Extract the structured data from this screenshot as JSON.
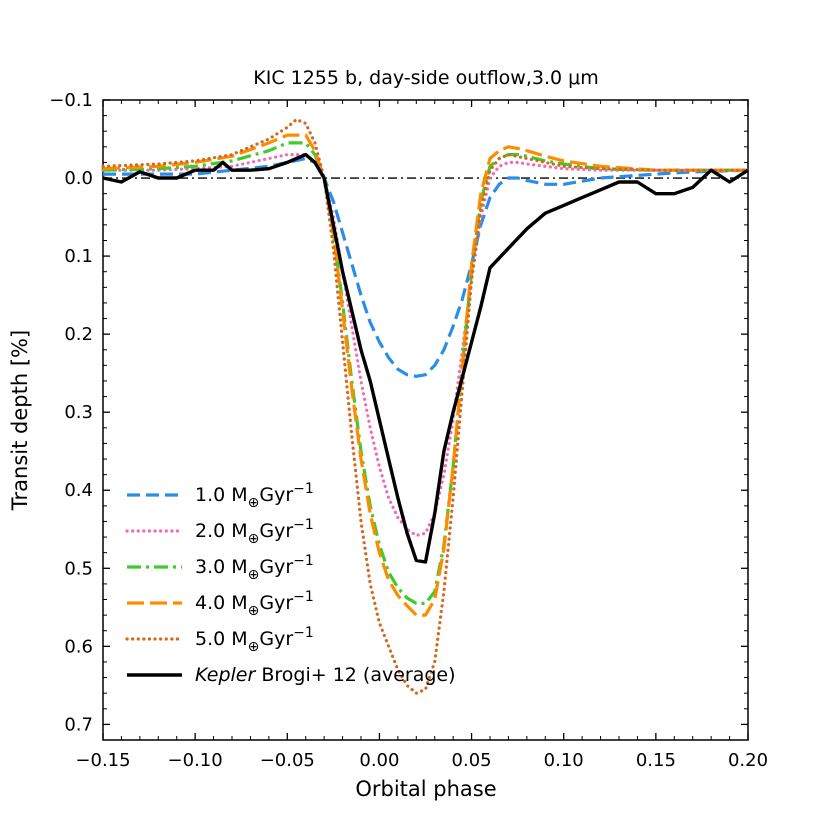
{
  "chart_data": {
    "type": "line",
    "title": "KIC 1255 b, day-side outflow,3.0 μm",
    "xlabel": "Orbital phase",
    "ylabel": "Transit depth [%]",
    "xlim": [
      -0.15,
      0.2
    ],
    "ylim": [
      0.72,
      -0.1
    ],
    "y_inverted": true,
    "xticks": [
      -0.15,
      -0.1,
      -0.05,
      0.0,
      0.05,
      0.1,
      0.15,
      0.2
    ],
    "xtick_labels": [
      "−0.15",
      "−0.10",
      "−0.05",
      "0.00",
      "0.05",
      "0.10",
      "0.15",
      "0.20"
    ],
    "yticks": [
      -0.1,
      0.0,
      0.1,
      0.2,
      0.3,
      0.4,
      0.5,
      0.6,
      0.7
    ],
    "ytick_labels": [
      "−0.1",
      "0.0",
      "0.1",
      "0.2",
      "0.3",
      "0.4",
      "0.5",
      "0.6",
      "0.7"
    ],
    "reference_line": {
      "y": 0.0,
      "style": "dash-dot",
      "color": "#000000"
    },
    "legend_position": "lower-left",
    "series": [
      {
        "name": "1.0 M⊕Gyr⁻¹",
        "label_main": "1.0 M",
        "label_sub": "⊕",
        "label_mid": "Gyr",
        "label_sup": "−1",
        "color": "#2b8de8",
        "style": "dashed",
        "x": [
          -0.15,
          -0.12,
          -0.1,
          -0.08,
          -0.06,
          -0.05,
          -0.04,
          -0.035,
          -0.03,
          -0.025,
          -0.02,
          -0.015,
          -0.01,
          -0.005,
          0.0,
          0.005,
          0.01,
          0.015,
          0.02,
          0.025,
          0.03,
          0.035,
          0.04,
          0.045,
          0.05,
          0.055,
          0.06,
          0.065,
          0.07,
          0.075,
          0.08,
          0.09,
          0.1,
          0.12,
          0.15,
          0.17,
          0.2
        ],
        "y": [
          -0.005,
          -0.005,
          -0.005,
          -0.01,
          -0.015,
          -0.02,
          -0.025,
          -0.02,
          0.0,
          0.03,
          0.07,
          0.11,
          0.15,
          0.185,
          0.21,
          0.23,
          0.245,
          0.252,
          0.254,
          0.252,
          0.24,
          0.22,
          0.19,
          0.155,
          0.11,
          0.06,
          0.025,
          0.008,
          0.0,
          0.0,
          0.003,
          0.008,
          0.008,
          0.0,
          -0.005,
          -0.008,
          -0.01
        ]
      },
      {
        "name": "2.0 M⊕Gyr⁻¹",
        "label_main": "2.0 M",
        "label_sub": "⊕",
        "label_mid": "Gyr",
        "label_sup": "−1",
        "color": "#f06bb4",
        "style": "dotted",
        "x": [
          -0.15,
          -0.12,
          -0.1,
          -0.08,
          -0.06,
          -0.05,
          -0.04,
          -0.035,
          -0.03,
          -0.025,
          -0.02,
          -0.015,
          -0.01,
          -0.005,
          0.0,
          0.005,
          0.01,
          0.015,
          0.02,
          0.025,
          0.03,
          0.035,
          0.04,
          0.045,
          0.05,
          0.055,
          0.06,
          0.065,
          0.07,
          0.075,
          0.08,
          0.09,
          0.1,
          0.12,
          0.15,
          0.17,
          0.2
        ],
        "y": [
          -0.01,
          -0.01,
          -0.012,
          -0.015,
          -0.025,
          -0.03,
          -0.03,
          -0.02,
          0.0,
          0.05,
          0.12,
          0.19,
          0.26,
          0.32,
          0.37,
          0.41,
          0.435,
          0.45,
          0.458,
          0.455,
          0.43,
          0.38,
          0.31,
          0.22,
          0.13,
          0.05,
          0.0,
          -0.015,
          -0.02,
          -0.02,
          -0.018,
          -0.015,
          -0.012,
          -0.01,
          -0.01,
          -0.01,
          -0.01
        ]
      },
      {
        "name": "3.0 M⊕Gyr⁻¹",
        "label_main": "3.0 M",
        "label_sub": "⊕",
        "label_mid": "Gyr",
        "label_sup": "−1",
        "color": "#3ecc2c",
        "style": "dash-dot",
        "x": [
          -0.15,
          -0.12,
          -0.1,
          -0.08,
          -0.06,
          -0.05,
          -0.04,
          -0.035,
          -0.03,
          -0.025,
          -0.02,
          -0.015,
          -0.01,
          -0.005,
          0.0,
          0.005,
          0.01,
          0.015,
          0.02,
          0.025,
          0.03,
          0.035,
          0.04,
          0.045,
          0.05,
          0.055,
          0.06,
          0.065,
          0.07,
          0.075,
          0.08,
          0.09,
          0.1,
          0.12,
          0.15,
          0.17,
          0.2
        ],
        "y": [
          -0.01,
          -0.012,
          -0.015,
          -0.022,
          -0.035,
          -0.045,
          -0.045,
          -0.03,
          0.0,
          0.07,
          0.16,
          0.26,
          0.35,
          0.42,
          0.47,
          0.505,
          0.525,
          0.538,
          0.545,
          0.545,
          0.53,
          0.47,
          0.37,
          0.24,
          0.12,
          0.03,
          -0.015,
          -0.025,
          -0.03,
          -0.03,
          -0.028,
          -0.022,
          -0.018,
          -0.012,
          -0.01,
          -0.01,
          -0.01
        ]
      },
      {
        "name": "4.0 M⊕Gyr⁻¹",
        "label_main": "4.0 M",
        "label_sub": "⊕",
        "label_mid": "Gyr",
        "label_sup": "−1",
        "color": "#ff8c00",
        "style": "long-dashed",
        "x": [
          -0.15,
          -0.12,
          -0.1,
          -0.08,
          -0.06,
          -0.05,
          -0.04,
          -0.035,
          -0.03,
          -0.025,
          -0.02,
          -0.015,
          -0.01,
          -0.005,
          0.0,
          0.005,
          0.01,
          0.015,
          0.02,
          0.025,
          0.03,
          0.035,
          0.04,
          0.045,
          0.05,
          0.055,
          0.06,
          0.065,
          0.07,
          0.075,
          0.08,
          0.09,
          0.1,
          0.12,
          0.15,
          0.17,
          0.2
        ],
        "y": [
          -0.012,
          -0.015,
          -0.02,
          -0.028,
          -0.045,
          -0.055,
          -0.055,
          -0.035,
          0.0,
          0.07,
          0.17,
          0.27,
          0.36,
          0.43,
          0.48,
          0.515,
          0.535,
          0.548,
          0.56,
          0.56,
          0.54,
          0.475,
          0.37,
          0.24,
          0.11,
          0.02,
          -0.025,
          -0.035,
          -0.04,
          -0.038,
          -0.035,
          -0.028,
          -0.022,
          -0.015,
          -0.01,
          -0.01,
          -0.01
        ]
      },
      {
        "name": "5.0 M⊕Gyr⁻¹",
        "label_main": "5.0 M",
        "label_sub": "⊕",
        "label_mid": "Gyr",
        "label_sup": "−1",
        "color": "#d2691e",
        "style": "dotted",
        "x": [
          -0.15,
          -0.12,
          -0.1,
          -0.08,
          -0.06,
          -0.05,
          -0.045,
          -0.04,
          -0.035,
          -0.03,
          -0.025,
          -0.02,
          -0.015,
          -0.01,
          -0.005,
          0.0,
          0.005,
          0.01,
          0.015,
          0.02,
          0.025,
          0.03,
          0.035,
          0.04,
          0.045,
          0.05,
          0.055,
          0.06,
          0.065,
          0.07,
          0.08,
          0.1,
          0.12,
          0.15,
          0.2
        ],
        "y": [
          -0.015,
          -0.018,
          -0.022,
          -0.03,
          -0.05,
          -0.065,
          -0.075,
          -0.07,
          -0.045,
          0.0,
          0.09,
          0.21,
          0.33,
          0.44,
          0.52,
          0.57,
          0.6,
          0.63,
          0.65,
          0.66,
          0.655,
          0.62,
          0.53,
          0.41,
          0.27,
          0.13,
          0.04,
          -0.01,
          -0.025,
          -0.03,
          -0.025,
          -0.015,
          -0.012,
          -0.01,
          -0.01
        ]
      },
      {
        "name": "Kepler Brogi+ 12 (average)",
        "label_italic": "Kepler",
        "label_rest": " Brogi+ 12 (average)",
        "color": "#000000",
        "style": "solid",
        "x": [
          -0.15,
          -0.14,
          -0.13,
          -0.12,
          -0.11,
          -0.1,
          -0.09,
          -0.085,
          -0.08,
          -0.07,
          -0.06,
          -0.05,
          -0.045,
          -0.04,
          -0.035,
          -0.03,
          -0.025,
          -0.02,
          -0.015,
          -0.01,
          -0.005,
          0.0,
          0.005,
          0.01,
          0.015,
          0.02,
          0.025,
          0.03,
          0.035,
          0.04,
          0.045,
          0.05,
          0.055,
          0.06,
          0.07,
          0.08,
          0.09,
          0.1,
          0.11,
          0.12,
          0.13,
          0.14,
          0.15,
          0.16,
          0.17,
          0.18,
          0.19,
          0.2
        ],
        "y": [
          0.0,
          0.005,
          -0.008,
          0.0,
          0.0,
          -0.01,
          -0.01,
          -0.02,
          -0.01,
          -0.01,
          -0.012,
          -0.02,
          -0.025,
          -0.03,
          -0.02,
          0.0,
          0.06,
          0.12,
          0.17,
          0.22,
          0.26,
          0.31,
          0.36,
          0.41,
          0.455,
          0.49,
          0.492,
          0.43,
          0.35,
          0.3,
          0.255,
          0.21,
          0.165,
          0.115,
          0.09,
          0.065,
          0.045,
          0.035,
          0.025,
          0.015,
          0.005,
          0.005,
          0.02,
          0.02,
          0.012,
          -0.01,
          0.005,
          -0.01
        ]
      }
    ]
  }
}
